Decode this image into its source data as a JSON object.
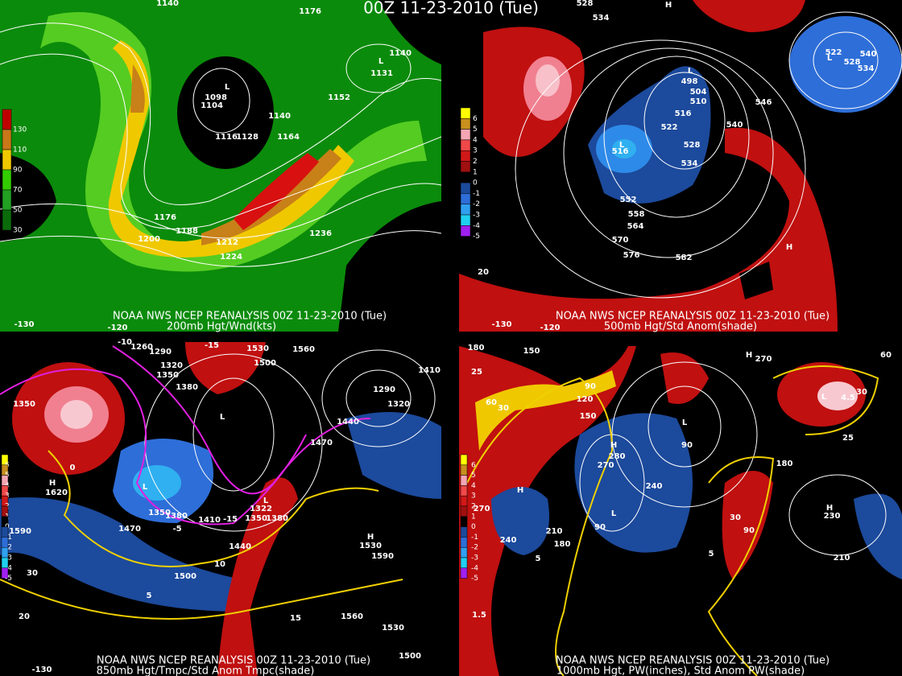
{
  "title": "00Z 11-23-2010 (Tue)",
  "panels": [
    {
      "source": "NOAA NWS NCEP REANALYSIS 00Z 11-23-2010 (Tue)",
      "caption": "200mb Hgt/Wnd(kts)",
      "legend": [
        "130",
        "110",
        "90",
        "70",
        "50",
        "30"
      ],
      "labels": [
        "1140",
        "1176",
        "1140",
        "1131",
        "L",
        "L",
        "1098",
        "1104",
        "1152",
        "1140",
        "1116",
        "1128",
        "1164",
        "1176",
        "1188",
        "1200",
        "1212",
        "1224",
        "1236"
      ],
      "axis_labels": [
        "-130",
        "-120"
      ]
    },
    {
      "source": "NOAA NWS NCEP REANALYSIS 00Z 11-23-2010 (Tue)",
      "caption": "500mb Hgt/Std Anom(shade)",
      "legend": [
        "6",
        "5",
        "4",
        "3",
        "2",
        "1",
        "0",
        "-1",
        "-2",
        "-3",
        "-4",
        "-5"
      ],
      "labels": [
        "534",
        "528",
        "H",
        "546",
        "540",
        "498",
        "504",
        "510",
        "516",
        "522",
        "528",
        "534",
        "516",
        "552",
        "558",
        "564",
        "570",
        "576",
        "582",
        "522",
        "528",
        "534",
        "540",
        "H",
        "L",
        "L",
        "L"
      ],
      "axis_labels": [
        "20",
        "-130",
        "-120"
      ]
    },
    {
      "source": "NOAA NWS NCEP REANALYSIS 00Z 11-23-2010 (Tue)",
      "caption": "850mb Hgt/Tmpc/Std Anom Tmpc(shade)",
      "legend": [
        "6",
        "5",
        "4",
        "3",
        "2",
        "1",
        "0",
        "-1",
        "-2",
        "-3",
        "-4",
        "-5"
      ],
      "labels": [
        "1260",
        "1290",
        "1320",
        "1350",
        "1380",
        "1530",
        "1500",
        "1560",
        "1410",
        "1290",
        "1320",
        "1440",
        "1470",
        "1350",
        "H",
        "1620",
        "1590",
        "1470",
        "1350",
        "1380",
        "1410",
        "1440",
        "1322",
        "1350",
        "1380",
        "1500",
        "H",
        "1530",
        "1590",
        "1560",
        "1530",
        "1500",
        "-10",
        "-15",
        "0",
        "-5",
        "-15",
        "10",
        "5",
        "15",
        "L",
        "L",
        "L"
      ],
      "axis_labels": [
        "30",
        "20",
        "-130"
      ]
    },
    {
      "source": "NOAA NWS NCEP REANALYSIS 00Z 11-23-2010 (Tue)",
      "caption": "1000mb Hgt, PW(inches), Std Anom PW(shade)",
      "legend": [
        "6",
        "5",
        "4",
        "3",
        "2",
        "1",
        "0",
        "-1",
        "-2",
        "-3",
        "-4",
        "-5"
      ],
      "labels": [
        "180",
        "150",
        "120",
        "150",
        "90",
        "60",
        "30",
        "25",
        "H",
        "280",
        "270",
        "240",
        "210",
        "180",
        "240",
        "270",
        "H",
        "H",
        "270",
        "60",
        "25",
        "30",
        "4.5",
        "L",
        "90",
        "L",
        "180",
        "L",
        "90",
        "30",
        "90",
        "5",
        "5",
        "1.5",
        "H",
        "230",
        "210"
      ],
      "axis_labels": []
    }
  ]
}
